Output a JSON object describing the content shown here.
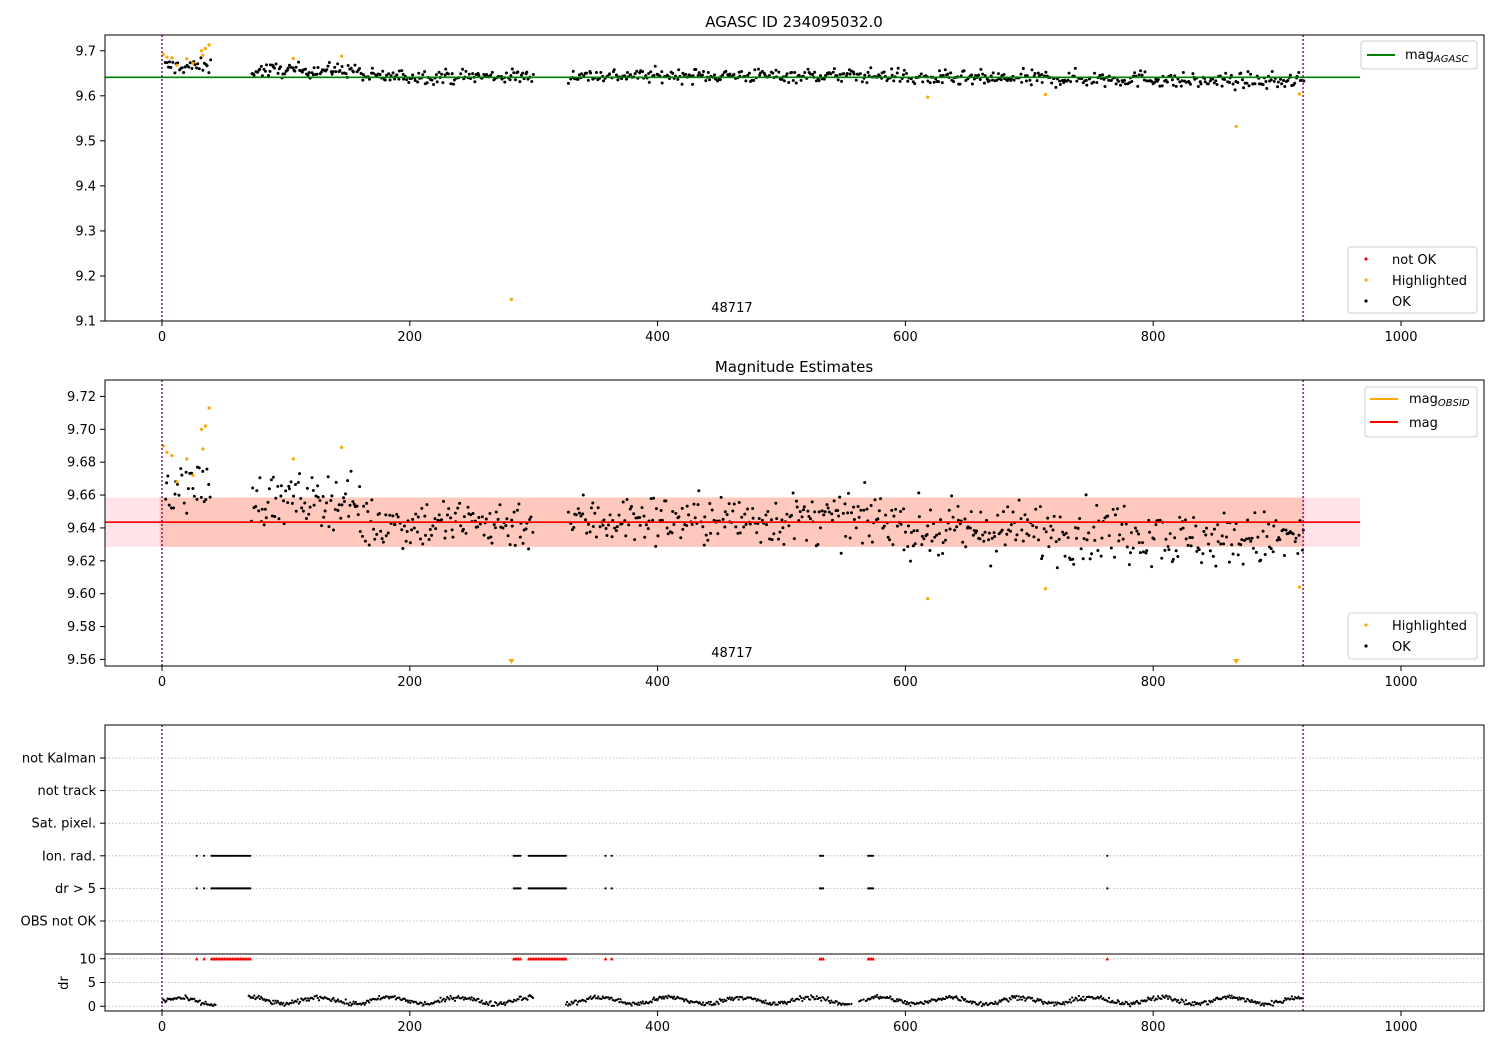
{
  "chart_data": [
    {
      "type": "scatter",
      "title": "AGASC ID 234095032.0",
      "xlim": [
        -46,
        1067
      ],
      "ylim": [
        9.1,
        9.735
      ],
      "xticks": [
        0,
        200,
        400,
        600,
        800,
        1000
      ],
      "yticks": [
        9.1,
        9.2,
        9.3,
        9.4,
        9.5,
        9.6,
        9.7
      ],
      "ytick_labels": [
        "9.1",
        "9.2",
        "9.3",
        "9.4",
        "9.5",
        "9.6",
        "9.7"
      ],
      "obsid_boundaries": [
        0,
        921
      ],
      "obsid_label": "48717",
      "obsid_label_x": 460,
      "mag_agasc": 9.641,
      "mag_line_x": [
        -46,
        967
      ],
      "legend_lines": [
        {
          "label": "mag",
          "sub": "AGASC",
          "color": "#008000"
        }
      ],
      "legend_points": [
        {
          "label": "not OK",
          "color": "#ff0000"
        },
        {
          "label": "Highlighted",
          "color": "#ffa500"
        },
        {
          "label": "OK",
          "color": "#000000"
        }
      ],
      "highlighted": [
        {
          "x": 1,
          "y": 9.692
        },
        {
          "x": 4,
          "y": 9.686
        },
        {
          "x": 8,
          "y": 9.684
        },
        {
          "x": 12,
          "y": 9.668
        },
        {
          "x": 20,
          "y": 9.682
        },
        {
          "x": 25,
          "y": 9.672
        },
        {
          "x": 32,
          "y": 9.7
        },
        {
          "x": 33,
          "y": 9.69
        },
        {
          "x": 35,
          "y": 9.705
        },
        {
          "x": 38,
          "y": 9.713
        },
        {
          "x": 106,
          "y": 9.683
        },
        {
          "x": 145,
          "y": 9.688
        },
        {
          "x": 282,
          "y": 9.148
        },
        {
          "x": 618,
          "y": 9.597
        },
        {
          "x": 713,
          "y": 9.603
        },
        {
          "x": 867,
          "y": 9.532
        },
        {
          "x": 918,
          "y": 9.604
        }
      ],
      "ok_segments": [
        {
          "x0": 2,
          "x1": 40,
          "n": 30,
          "center": 9.665,
          "spread": 0.012
        },
        {
          "x0": 72,
          "x1": 160,
          "n": 80,
          "center": 9.657,
          "spread": 0.011
        },
        {
          "x0": 160,
          "x1": 300,
          "n": 120,
          "center": 9.643,
          "spread": 0.011
        },
        {
          "x0": 328,
          "x1": 600,
          "n": 230,
          "center": 9.645,
          "spread": 0.011
        },
        {
          "x0": 600,
          "x1": 690,
          "n": 80,
          "center": 9.638,
          "spread": 0.012
        },
        {
          "x0": 690,
          "x1": 810,
          "n": 100,
          "center": 9.638,
          "spread": 0.013
        },
        {
          "x0": 810,
          "x1": 922,
          "n": 95,
          "center": 9.633,
          "spread": 0.012
        }
      ]
    },
    {
      "type": "scatter",
      "title": "Magnitude Estimates",
      "xlim": [
        -46,
        1067
      ],
      "ylim": [
        9.556,
        9.73
      ],
      "xticks": [
        0,
        200,
        400,
        600,
        800,
        1000
      ],
      "yticks": [
        9.56,
        9.58,
        9.6,
        9.62,
        9.64,
        9.66,
        9.68,
        9.7,
        9.72
      ],
      "ytick_labels": [
        "9.56",
        "9.58",
        "9.60",
        "9.62",
        "9.64",
        "9.66",
        "9.68",
        "9.70",
        "9.72"
      ],
      "obsid_boundaries": [
        0,
        921
      ],
      "obsid_label": "48717",
      "obsid_label_x": 460,
      "mag": 9.6435,
      "mag_obsid": 9.6435,
      "band_outer": [
        9.6285,
        9.6585
      ],
      "band_inner_x": [
        -2,
        922
      ],
      "mag_line_x": [
        -46,
        967
      ],
      "legend_lines": [
        {
          "label": "mag",
          "sub": "OBSID",
          "color": "#ffa500"
        },
        {
          "label": "mag",
          "sub": "",
          "color": "#ff0000"
        }
      ],
      "legend_points": [
        {
          "label": "Highlighted",
          "color": "#ffa500"
        },
        {
          "label": "OK",
          "color": "#000000"
        }
      ],
      "highlighted": [
        {
          "x": 1,
          "y": 9.69
        },
        {
          "x": 4,
          "y": 9.686
        },
        {
          "x": 8,
          "y": 9.684
        },
        {
          "x": 12,
          "y": 9.668
        },
        {
          "x": 20,
          "y": 9.682
        },
        {
          "x": 25,
          "y": 9.672
        },
        {
          "x": 32,
          "y": 9.7
        },
        {
          "x": 33,
          "y": 9.688
        },
        {
          "x": 35,
          "y": 9.702
        },
        {
          "x": 38,
          "y": 9.713
        },
        {
          "x": 106,
          "y": 9.682
        },
        {
          "x": 145,
          "y": 9.689
        },
        {
          "x": 618,
          "y": 9.597
        },
        {
          "x": 713,
          "y": 9.603
        },
        {
          "x": 918,
          "y": 9.604
        }
      ],
      "clipped_markers": [
        {
          "x": 282
        },
        {
          "x": 867
        }
      ],
      "ok_segments": [
        {
          "x0": 2,
          "x1": 40,
          "n": 30,
          "center": 9.665,
          "spread": 0.012
        },
        {
          "x0": 72,
          "x1": 160,
          "n": 80,
          "center": 9.657,
          "spread": 0.011
        },
        {
          "x0": 160,
          "x1": 300,
          "n": 120,
          "center": 9.643,
          "spread": 0.011
        },
        {
          "x0": 328,
          "x1": 600,
          "n": 230,
          "center": 9.645,
          "spread": 0.011
        },
        {
          "x0": 600,
          "x1": 690,
          "n": 80,
          "center": 9.638,
          "spread": 0.012
        },
        {
          "x0": 690,
          "x1": 810,
          "n": 100,
          "center": 9.638,
          "spread": 0.013
        },
        {
          "x0": 810,
          "x1": 922,
          "n": 95,
          "center": 9.633,
          "spread": 0.012
        }
      ]
    },
    {
      "type": "scatter",
      "title": "",
      "xlim": [
        -46,
        1067
      ],
      "xticks": [
        0,
        200,
        400,
        600,
        800,
        1000
      ],
      "obsid_boundaries": [
        0,
        921
      ],
      "flag_labels": [
        "not Kalman",
        "not track",
        "Sat. pixel.",
        "Ion. rad.",
        "dr > 5",
        "OBS not OK"
      ],
      "flag_ranges": [
        {
          "flags": [
            "Ion. rad.",
            "dr > 5"
          ],
          "ranges": [
            [
              28,
              28
            ],
            [
              34,
              34
            ],
            [
              40,
              72
            ],
            [
              284,
              290
            ],
            [
              296,
              326
            ],
            [
              358,
              358
            ],
            [
              363,
              363
            ],
            [
              531,
              534
            ],
            [
              570,
              575
            ],
            [
              763,
              763
            ]
          ]
        }
      ],
      "dr_ylabel": "dr",
      "dr_yticks": [
        0,
        5,
        10
      ],
      "dr_ylim": [
        -1,
        11
      ],
      "dr_cap": 10,
      "dr_gaps": [
        [
          44,
          70
        ],
        [
          300,
          326
        ],
        [
          555,
          568
        ]
      ],
      "dr_segments": [
        {
          "x0": 0,
          "x1": 45,
          "level": 1.0
        },
        {
          "x0": 70,
          "x1": 300,
          "level": 1.2
        },
        {
          "x0": 326,
          "x1": 921,
          "level": 1.2
        }
      ]
    }
  ]
}
